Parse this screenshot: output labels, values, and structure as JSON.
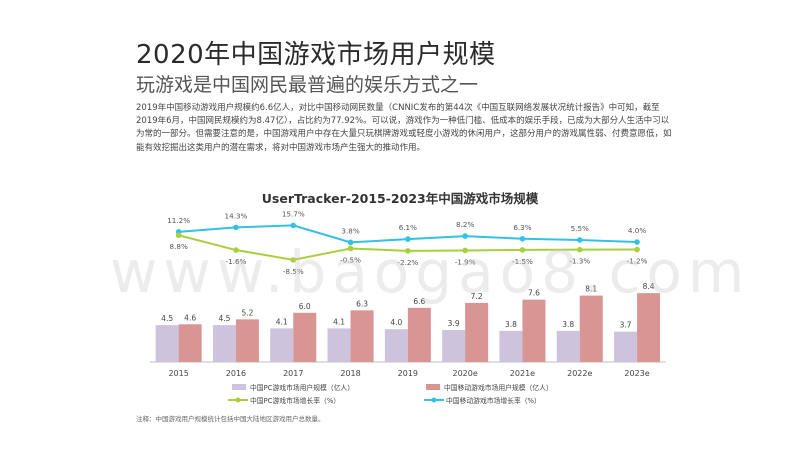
{
  "title": "2020年中国游戏市场用户规模",
  "subtitle": "玩游戏是中国网民最普遍的娱乐方式之一",
  "paragraph": "2019年中国移动游戏用户规模约6.6亿人，对比中国移动网民数量（CNNIC发布的第44次《中国互联网络发展状况统计报告》中可知，截至2019年6月，中国网民规模约为8.47亿），占比约为77.92%。可以说，游戏作为一种低门槛、低成本的娱乐手段，已成为大部分人生活中习以为常的一部分。但需要注意的是，中国游戏用户中存在大量只玩棋牌游戏或轻度小游戏的休闲用户，这部分用户的游戏属性弱、付费意愿低，如能有效挖掘出这类用户的潜在需求，将对中国游戏市场产生强大的推动作用。",
  "watermark": "www.baogao8.com",
  "note": "注释：中国游戏用户规模统计包括中国大陆地区游戏用户总数量。",
  "colors": {
    "pc_bar": "#cdc3dc",
    "mobile_bar": "#d99593",
    "pc_line": "#a9cf3c",
    "mobile_line": "#33c1e6"
  },
  "chart_data": {
    "type": "bar",
    "title": "UserTracker-2015-2023年中国游戏市场规模",
    "categories": [
      "2015",
      "2016",
      "2017",
      "2018",
      "2019",
      "2020e",
      "2021e",
      "2022e",
      "2023e"
    ],
    "series": [
      {
        "name": "中国PC游戏市场用户规模（亿人）",
        "type": "bar",
        "values": [
          4.5,
          4.5,
          4.1,
          4.1,
          4.0,
          3.9,
          3.8,
          3.8,
          3.7
        ]
      },
      {
        "name": "中国移动游戏市场用户规模（亿人）",
        "type": "bar",
        "values": [
          4.6,
          5.2,
          6.0,
          6.3,
          6.6,
          7.2,
          7.6,
          8.1,
          8.4
        ]
      },
      {
        "name": "中国PC游戏市场增长率（%）",
        "type": "line",
        "values": [
          8.8,
          -1.6,
          -8.5,
          -0.5,
          -2.2,
          -1.9,
          -1.5,
          -1.3,
          -1.2
        ],
        "labels": [
          "8.8%",
          "-1.6%",
          "-8.5%",
          "-0.5%",
          "-2.2%",
          "-1.9%",
          "-1.5%",
          "-1.3%",
          "-1.2%"
        ]
      },
      {
        "name": "中国移动游戏市场增长率（%）",
        "type": "line",
        "values": [
          11.2,
          14.3,
          15.7,
          3.8,
          6.1,
          8.2,
          6.3,
          5.5,
          4.0
        ],
        "labels": [
          "11.2%",
          "14.3%",
          "15.7%",
          "3.8%",
          "6.1%",
          "8.2%",
          "6.3%",
          "5.5%",
          "4.0%"
        ]
      }
    ],
    "legend": "bottom",
    "grid": false
  }
}
